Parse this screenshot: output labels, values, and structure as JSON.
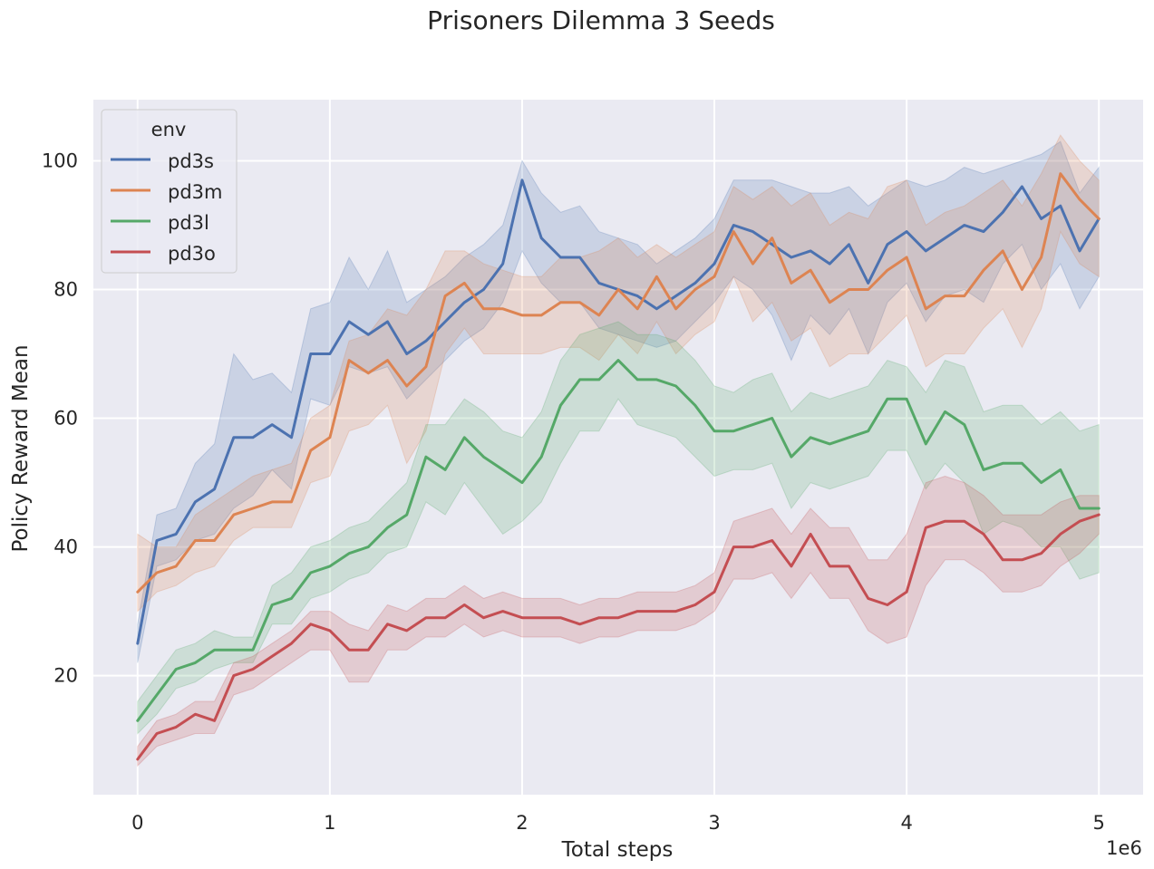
{
  "chart_data": {
    "type": "line",
    "title": "Prisoners Dilemma 3 Seeds",
    "xlabel": "Total steps",
    "ylabel": "Policy Reward Mean",
    "x_offset_label": "1e6",
    "xlim": [
      -0.23,
      5.23
    ],
    "ylim": [
      1.5,
      109.5
    ],
    "x_ticks": [
      0,
      1,
      2,
      3,
      4,
      5
    ],
    "x_tick_labels": [
      "0",
      "1",
      "2",
      "3",
      "4",
      "5"
    ],
    "y_ticks": [
      20,
      40,
      60,
      80,
      100
    ],
    "y_tick_labels": [
      "20",
      "40",
      "60",
      "80",
      "100"
    ],
    "grid": true,
    "legend": {
      "title": "env",
      "position": "top-left"
    },
    "x": [
      0,
      0.1,
      0.2,
      0.3,
      0.4,
      0.5,
      0.6,
      0.7,
      0.8,
      0.9,
      1.0,
      1.1,
      1.2,
      1.3,
      1.4,
      1.5,
      1.6,
      1.7,
      1.8,
      1.9,
      2.0,
      2.1,
      2.2,
      2.3,
      2.4,
      2.5,
      2.6,
      2.7,
      2.8,
      2.9,
      3.0,
      3.1,
      3.2,
      3.3,
      3.4,
      3.5,
      3.6,
      3.7,
      3.8,
      3.9,
      4.0,
      4.1,
      4.2,
      4.3,
      4.4,
      4.5,
      4.6,
      4.7,
      4.8,
      4.9,
      5.0
    ],
    "series": [
      {
        "name": "pd3s",
        "color": "#4C72B0",
        "mean": [
          25,
          41,
          42,
          47,
          49,
          57,
          57,
          59,
          57,
          70,
          70,
          75,
          73,
          75,
          70,
          72,
          75,
          78,
          80,
          84,
          97,
          88,
          85,
          85,
          81,
          80,
          79,
          77,
          79,
          81,
          84,
          90,
          89,
          87,
          85,
          86,
          84,
          87,
          81,
          87,
          89,
          86,
          88,
          90,
          89,
          92,
          96,
          91,
          93,
          86,
          91
        ],
        "lower": [
          22,
          37,
          38,
          41,
          42,
          46,
          48,
          52,
          49,
          63,
          62,
          68,
          67,
          68,
          63,
          66,
          69,
          72,
          74,
          78,
          86,
          81,
          78,
          78,
          74,
          73,
          72,
          71,
          72,
          75,
          78,
          82,
          80,
          76,
          69,
          76,
          73,
          77,
          70,
          78,
          81,
          75,
          79,
          80,
          78,
          84,
          87,
          80,
          84,
          77,
          82
        ],
        "upper": [
          28,
          45,
          46,
          53,
          56,
          70,
          66,
          67,
          64,
          77,
          78,
          85,
          80,
          86,
          78,
          80,
          82,
          85,
          87,
          90,
          100,
          95,
          92,
          93,
          89,
          88,
          87,
          84,
          86,
          88,
          91,
          97,
          97,
          97,
          96,
          95,
          95,
          96,
          93,
          95,
          97,
          96,
          97,
          99,
          98,
          99,
          100,
          101,
          103,
          95,
          99
        ]
      },
      {
        "name": "pd3m",
        "color": "#DD8452",
        "mean": [
          33,
          36,
          37,
          41,
          41,
          45,
          46,
          47,
          47,
          55,
          57,
          69,
          67,
          69,
          65,
          68,
          79,
          81,
          77,
          77,
          76,
          76,
          78,
          78,
          76,
          80,
          77,
          82,
          77,
          80,
          82,
          89,
          84,
          88,
          81,
          83,
          78,
          80,
          80,
          83,
          85,
          77,
          79,
          79,
          83,
          86,
          80,
          85,
          98,
          94,
          91
        ],
        "lower": [
          30,
          33,
          34,
          36,
          37,
          41,
          43,
          43,
          43,
          50,
          51,
          58,
          59,
          62,
          53,
          58,
          70,
          74,
          70,
          70,
          70,
          70,
          71,
          71,
          69,
          73,
          70,
          75,
          70,
          73,
          75,
          82,
          75,
          78,
          72,
          74,
          68,
          70,
          70,
          73,
          76,
          68,
          70,
          70,
          74,
          77,
          71,
          77,
          89,
          84,
          82
        ],
        "upper": [
          42,
          40,
          40,
          45,
          47,
          49,
          51,
          52,
          53,
          60,
          62,
          72,
          73,
          77,
          76,
          80,
          86,
          86,
          84,
          83,
          82,
          82,
          85,
          85,
          86,
          88,
          85,
          87,
          85,
          87,
          89,
          96,
          94,
          96,
          93,
          95,
          90,
          92,
          91,
          96,
          97,
          90,
          92,
          93,
          95,
          97,
          93,
          98,
          104,
          100,
          97
        ]
      },
      {
        "name": "pd3l",
        "color": "#55A868",
        "mean": [
          13,
          17,
          21,
          22,
          24,
          24,
          24,
          31,
          32,
          36,
          37,
          39,
          40,
          43,
          45,
          54,
          52,
          57,
          54,
          52,
          50,
          54,
          62,
          66,
          66,
          69,
          66,
          66,
          65,
          62,
          58,
          58,
          59,
          60,
          54,
          57,
          56,
          57,
          58,
          63,
          63,
          56,
          61,
          59,
          52,
          53,
          53,
          50,
          52,
          46,
          46
        ],
        "lower": [
          11,
          14,
          18,
          19,
          21,
          22,
          22,
          28,
          28,
          32,
          33,
          35,
          36,
          39,
          40,
          47,
          45,
          50,
          46,
          42,
          44,
          47,
          53,
          58,
          58,
          63,
          59,
          58,
          57,
          54,
          51,
          52,
          52,
          53,
          46,
          50,
          49,
          50,
          51,
          55,
          55,
          49,
          53,
          50,
          42,
          44,
          43,
          40,
          40,
          35,
          36
        ],
        "upper": [
          16,
          20,
          24,
          25,
          27,
          26,
          26,
          34,
          36,
          40,
          41,
          43,
          44,
          47,
          50,
          59,
          59,
          63,
          61,
          58,
          57,
          61,
          69,
          73,
          74,
          75,
          73,
          73,
          72,
          69,
          65,
          64,
          66,
          67,
          61,
          64,
          63,
          64,
          65,
          69,
          68,
          64,
          69,
          68,
          61,
          62,
          62,
          59,
          61,
          58,
          59
        ]
      },
      {
        "name": "pd3o",
        "color": "#C44E52",
        "mean": [
          7,
          11,
          12,
          14,
          13,
          20,
          21,
          23,
          25,
          28,
          27,
          24,
          24,
          28,
          27,
          29,
          29,
          31,
          29,
          30,
          29,
          29,
          29,
          28,
          29,
          29,
          30,
          30,
          30,
          31,
          33,
          40,
          40,
          41,
          37,
          42,
          37,
          37,
          32,
          31,
          33,
          43,
          44,
          44,
          42,
          38,
          38,
          39,
          42,
          44,
          45
        ],
        "lower": [
          6,
          9,
          10,
          11,
          11,
          17,
          18,
          20,
          22,
          24,
          24,
          19,
          19,
          24,
          24,
          26,
          26,
          28,
          26,
          27,
          26,
          26,
          26,
          25,
          26,
          26,
          27,
          27,
          27,
          28,
          30,
          35,
          35,
          36,
          32,
          36,
          32,
          32,
          27,
          25,
          26,
          34,
          38,
          38,
          36,
          33,
          33,
          34,
          37,
          39,
          42
        ],
        "upper": [
          9,
          13,
          14,
          16,
          16,
          22,
          23,
          25,
          27,
          30,
          30,
          28,
          27,
          31,
          30,
          32,
          32,
          34,
          32,
          33,
          32,
          32,
          32,
          31,
          32,
          32,
          33,
          33,
          33,
          34,
          36,
          44,
          45,
          46,
          42,
          46,
          43,
          43,
          38,
          38,
          42,
          50,
          51,
          50,
          48,
          45,
          45,
          45,
          47,
          48,
          48
        ]
      }
    ]
  }
}
